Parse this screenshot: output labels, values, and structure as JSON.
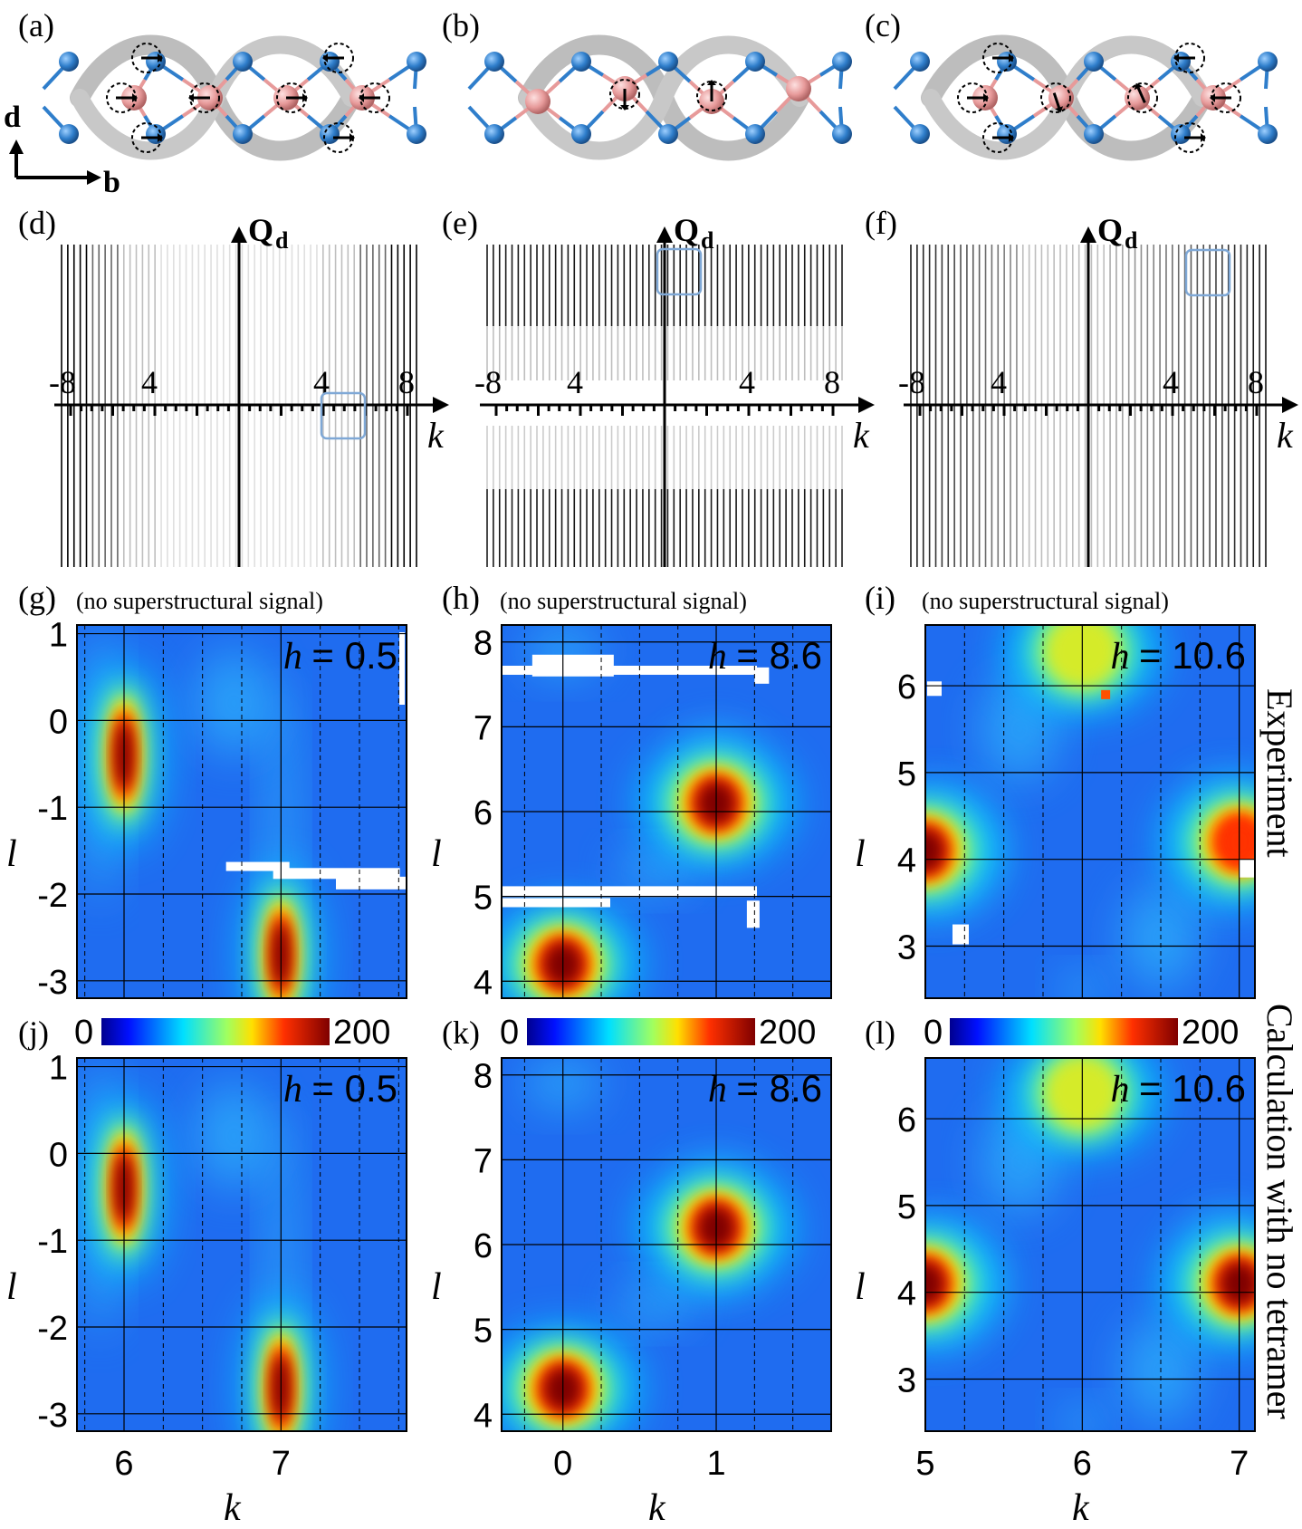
{
  "panel_labels": [
    "(a)",
    "(b)",
    "(c)",
    "(d)",
    "(e)",
    "(f)",
    "(g)",
    "(h)",
    "(i)",
    "(j)",
    "(k)",
    "(l)"
  ],
  "structure": {
    "axis_d": "d",
    "axis_b": "b"
  },
  "lattice_panels": {
    "axis_title_main": "Q",
    "axis_title_sub": "d",
    "k_label": "k",
    "tick_labels": [
      "-8",
      "4",
      "4",
      "8"
    ]
  },
  "heatmap_annotation": "(no superstructural signal)",
  "h_symbol": "h",
  "h_values": [
    "= 0.5",
    "= 8.6",
    "= 10.6"
  ],
  "y_axis_label": "l",
  "x_axis_label": "k",
  "colorbar": {
    "min": "0",
    "max": "200"
  },
  "row_labels": {
    "experiment": "Experiment",
    "calculation": "Calculation with no tetramer"
  },
  "chart_data": [
    {
      "type": "heatmap",
      "panel": "(g)",
      "title": "h = 0.5",
      "xlabel": "k",
      "ylabel": "l",
      "xticks": [
        "6",
        "7"
      ],
      "yticks": [
        "1",
        "0",
        "-1",
        "-2",
        "-3"
      ],
      "xlim": [
        5.7,
        7.8
      ],
      "ylim": [
        -3.2,
        1.1
      ],
      "peaks": [
        {
          "k": 6,
          "l": -0.4,
          "value": 200
        },
        {
          "k": 7,
          "l": -2.7,
          "value": 200
        }
      ]
    },
    {
      "type": "heatmap",
      "panel": "(h)",
      "title": "h = 8.6",
      "xlabel": "k",
      "ylabel": "l",
      "xticks": [
        "0",
        "1"
      ],
      "yticks": [
        "8",
        "7",
        "6",
        "5",
        "4"
      ],
      "xlim": [
        -0.4,
        1.75
      ],
      "ylim": [
        3.8,
        8.2
      ],
      "peaks": [
        {
          "k": 1,
          "l": 6.1,
          "value": 200
        },
        {
          "k": 0,
          "l": 4.2,
          "value": 180
        }
      ]
    },
    {
      "type": "heatmap",
      "panel": "(i)",
      "title": "h = 10.6",
      "xlabel": "k",
      "ylabel": "l",
      "xticks": [
        "5",
        "6",
        "7"
      ],
      "yticks": [
        "6",
        "5",
        "4",
        "3"
      ],
      "xlim": [
        5,
        7.1
      ],
      "ylim": [
        2.4,
        6.7
      ],
      "peaks": [
        {
          "k": 5,
          "l": 4.1,
          "value": 180
        },
        {
          "k": 7,
          "l": 4.2,
          "value": 150
        },
        {
          "k": 6,
          "l": 6.4,
          "value": 110
        }
      ]
    },
    {
      "type": "heatmap",
      "panel": "(j)",
      "title": "h = 0.5",
      "xlabel": "k",
      "ylabel": "l",
      "xticks": [
        "6",
        "7"
      ],
      "yticks": [
        "1",
        "0",
        "-1",
        "-2",
        "-3"
      ],
      "xlim": [
        5.7,
        7.8
      ],
      "ylim": [
        -3.2,
        1.1
      ],
      "peaks": [
        {
          "k": 6,
          "l": -0.4,
          "value": 200
        },
        {
          "k": 7,
          "l": -2.7,
          "value": 200
        }
      ]
    },
    {
      "type": "heatmap",
      "panel": "(k)",
      "title": "h = 8.6",
      "xlabel": "k",
      "ylabel": "l",
      "xticks": [
        "0",
        "1"
      ],
      "yticks": [
        "8",
        "7",
        "6",
        "5",
        "4"
      ],
      "xlim": [
        -0.4,
        1.75
      ],
      "ylim": [
        3.8,
        8.2
      ],
      "peaks": [
        {
          "k": 1,
          "l": 6.2,
          "value": 200
        },
        {
          "k": 0,
          "l": 4.3,
          "value": 180
        }
      ]
    },
    {
      "type": "heatmap",
      "panel": "(l)",
      "title": "h = 10.6",
      "xlabel": "k",
      "ylabel": "l",
      "xticks": [
        "5",
        "6",
        "7"
      ],
      "yticks": [
        "6",
        "5",
        "4",
        "3"
      ],
      "xlim": [
        5,
        7.1
      ],
      "ylim": [
        2.4,
        6.7
      ],
      "peaks": [
        {
          "k": 5,
          "l": 4.1,
          "value": 180
        },
        {
          "k": 7,
          "l": 4.1,
          "value": 180
        },
        {
          "k": 6,
          "l": 6.3,
          "value": 110
        }
      ]
    }
  ],
  "colors": {
    "pink": "#e79a9a",
    "blue": "#2f7ecb",
    "gray": "#bdbdbd",
    "frame_blue": "#7fa8d6"
  }
}
